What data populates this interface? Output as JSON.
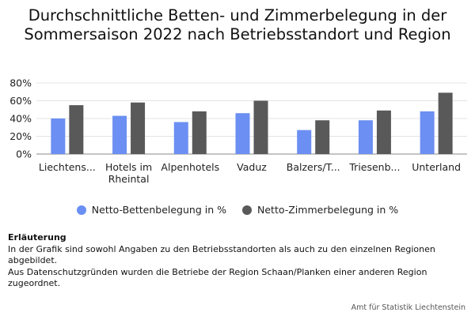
{
  "chart_data": {
    "type": "bar",
    "title": "Durchschnittliche Betten- und Zimmerbelegung in der Sommersaison 2022 nach Betriebsstandort und Region",
    "categories": [
      [
        "Liechtens..."
      ],
      [
        "Hotels im",
        "Rheintal"
      ],
      [
        "Alpenhotels"
      ],
      [
        "Vaduz"
      ],
      [
        "Balzers/T..."
      ],
      [
        "Triesenb..."
      ],
      [
        "Unterland"
      ]
    ],
    "series": [
      {
        "name": "Netto-Bettenbelegung in %",
        "color": "#6b8ff2",
        "values": [
          40,
          43,
          36,
          46,
          27,
          38,
          48
        ]
      },
      {
        "name": "Netto-Zimmerbelegung in %",
        "color": "#595959",
        "values": [
          55,
          58,
          48,
          60,
          38,
          49,
          69
        ]
      }
    ],
    "y_ticks": [
      "0%",
      "20%",
      "40%",
      "60%",
      "80%"
    ],
    "ylim": [
      0,
      80
    ],
    "grid": true,
    "legend_position": "bottom"
  },
  "note": {
    "heading": "Erläuterung",
    "lines": [
      "In der Grafik sind sowohl Angaben zu den Betriebsstandorten als auch zu den einzelnen Regionen abgebildet.",
      "Aus Datenschutzgründen wurden die Betriebe der Region Schaan/Planken einer anderen Region zugeordnet."
    ]
  },
  "credit": "Amt für Statistik Liechtenstein"
}
